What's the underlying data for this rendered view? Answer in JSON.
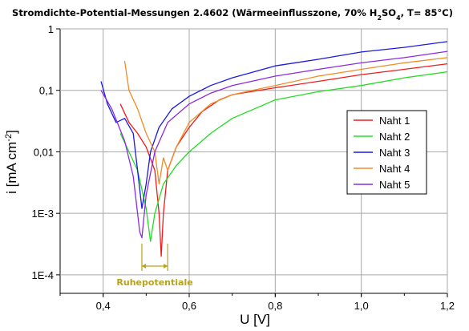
{
  "chart_data": {
    "type": "line",
    "title_parts": [
      {
        "t": "Stromdichte-Potential-Messungen 2.4602 (Wärmeeinflusszone, 70% H",
        "sub": false
      },
      {
        "t": "2",
        "sub": true
      },
      {
        "t": "SO",
        "sub": false
      },
      {
        "t": "4",
        "sub": true
      },
      {
        "t": ", T= 85°C)",
        "sub": false
      }
    ],
    "xlabel": "U [V]",
    "ylabel_main": "i [mA cm",
    "ylabel_sup": "-2",
    "ylabel_end": "]",
    "xlim": [
      0.3,
      1.2
    ],
    "ylim": [
      5e-05,
      1
    ],
    "yscale": "log",
    "grid": true,
    "legend_position": "right-middle",
    "x_ticks": [
      {
        "v": 0.4,
        "label": "0,4"
      },
      {
        "v": 0.6,
        "label": "0,6"
      },
      {
        "v": 0.8,
        "label": "0,8"
      },
      {
        "v": 1.0,
        "label": "1,0"
      },
      {
        "v": 1.2,
        "label": "1,2"
      }
    ],
    "y_ticks": [
      {
        "v": 1,
        "label": "1"
      },
      {
        "v": 0.1,
        "label": "0,1"
      },
      {
        "v": 0.01,
        "label": "0,01"
      },
      {
        "v": 0.001,
        "label": "1E-3"
      },
      {
        "v": 0.0001,
        "label": "1E-4"
      }
    ],
    "annotation": {
      "label": "Ruhepotentiale",
      "x_range": [
        0.49,
        0.55
      ],
      "color": "#b8a218"
    },
    "series": [
      {
        "name": "Naht 1",
        "color": "#ee1c1c",
        "points": [
          [
            0.44,
            0.06
          ],
          [
            0.46,
            0.03
          ],
          [
            0.48,
            0.02
          ],
          [
            0.5,
            0.012
          ],
          [
            0.52,
            0.005
          ],
          [
            0.53,
            0.001
          ],
          [
            0.535,
            0.0002
          ],
          [
            0.54,
            0.001
          ],
          [
            0.55,
            0.005
          ],
          [
            0.57,
            0.012
          ],
          [
            0.6,
            0.025
          ],
          [
            0.63,
            0.045
          ],
          [
            0.67,
            0.07
          ],
          [
            0.7,
            0.085
          ],
          [
            0.8,
            0.11
          ],
          [
            0.9,
            0.14
          ],
          [
            1.0,
            0.18
          ],
          [
            1.1,
            0.22
          ],
          [
            1.2,
            0.27
          ]
        ]
      },
      {
        "name": "Naht 2",
        "color": "#22dd22",
        "points": [
          [
            0.44,
            0.02
          ],
          [
            0.46,
            0.01
          ],
          [
            0.48,
            0.005
          ],
          [
            0.5,
            0.0012
          ],
          [
            0.51,
            0.00035
          ],
          [
            0.52,
            0.001
          ],
          [
            0.54,
            0.003
          ],
          [
            0.57,
            0.006
          ],
          [
            0.6,
            0.01
          ],
          [
            0.65,
            0.02
          ],
          [
            0.7,
            0.035
          ],
          [
            0.8,
            0.07
          ],
          [
            0.9,
            0.095
          ],
          [
            1.0,
            0.12
          ],
          [
            1.1,
            0.16
          ],
          [
            1.2,
            0.2
          ]
        ]
      },
      {
        "name": "Naht 3",
        "color": "#1a1ae0",
        "points": [
          [
            0.395,
            0.14
          ],
          [
            0.41,
            0.06
          ],
          [
            0.43,
            0.03
          ],
          [
            0.45,
            0.035
          ],
          [
            0.47,
            0.02
          ],
          [
            0.48,
            0.005
          ],
          [
            0.49,
            0.0012
          ],
          [
            0.5,
            0.003
          ],
          [
            0.51,
            0.01
          ],
          [
            0.53,
            0.025
          ],
          [
            0.56,
            0.05
          ],
          [
            0.6,
            0.08
          ],
          [
            0.65,
            0.12
          ],
          [
            0.7,
            0.16
          ],
          [
            0.8,
            0.25
          ],
          [
            0.9,
            0.32
          ],
          [
            1.0,
            0.42
          ],
          [
            1.1,
            0.5
          ],
          [
            1.2,
            0.62
          ]
        ]
      },
      {
        "name": "Naht 4",
        "color": "#f08c24",
        "points": [
          [
            0.45,
            0.3
          ],
          [
            0.46,
            0.1
          ],
          [
            0.48,
            0.05
          ],
          [
            0.5,
            0.02
          ],
          [
            0.52,
            0.01
          ],
          [
            0.53,
            0.003
          ],
          [
            0.54,
            0.008
          ],
          [
            0.55,
            0.005
          ],
          [
            0.57,
            0.012
          ],
          [
            0.6,
            0.03
          ],
          [
            0.65,
            0.06
          ],
          [
            0.7,
            0.085
          ],
          [
            0.8,
            0.12
          ],
          [
            0.9,
            0.17
          ],
          [
            1.0,
            0.22
          ],
          [
            1.1,
            0.28
          ],
          [
            1.2,
            0.34
          ]
        ]
      },
      {
        "name": "Naht 5",
        "color": "#8a2be2",
        "points": [
          [
            0.395,
            0.1
          ],
          [
            0.42,
            0.05
          ],
          [
            0.45,
            0.015
          ],
          [
            0.47,
            0.004
          ],
          [
            0.485,
            0.0005
          ],
          [
            0.49,
            0.0004
          ],
          [
            0.5,
            0.002
          ],
          [
            0.52,
            0.01
          ],
          [
            0.55,
            0.03
          ],
          [
            0.6,
            0.06
          ],
          [
            0.65,
            0.09
          ],
          [
            0.7,
            0.12
          ],
          [
            0.8,
            0.17
          ],
          [
            0.9,
            0.22
          ],
          [
            1.0,
            0.28
          ],
          [
            1.1,
            0.34
          ],
          [
            1.2,
            0.43
          ]
        ]
      }
    ]
  }
}
